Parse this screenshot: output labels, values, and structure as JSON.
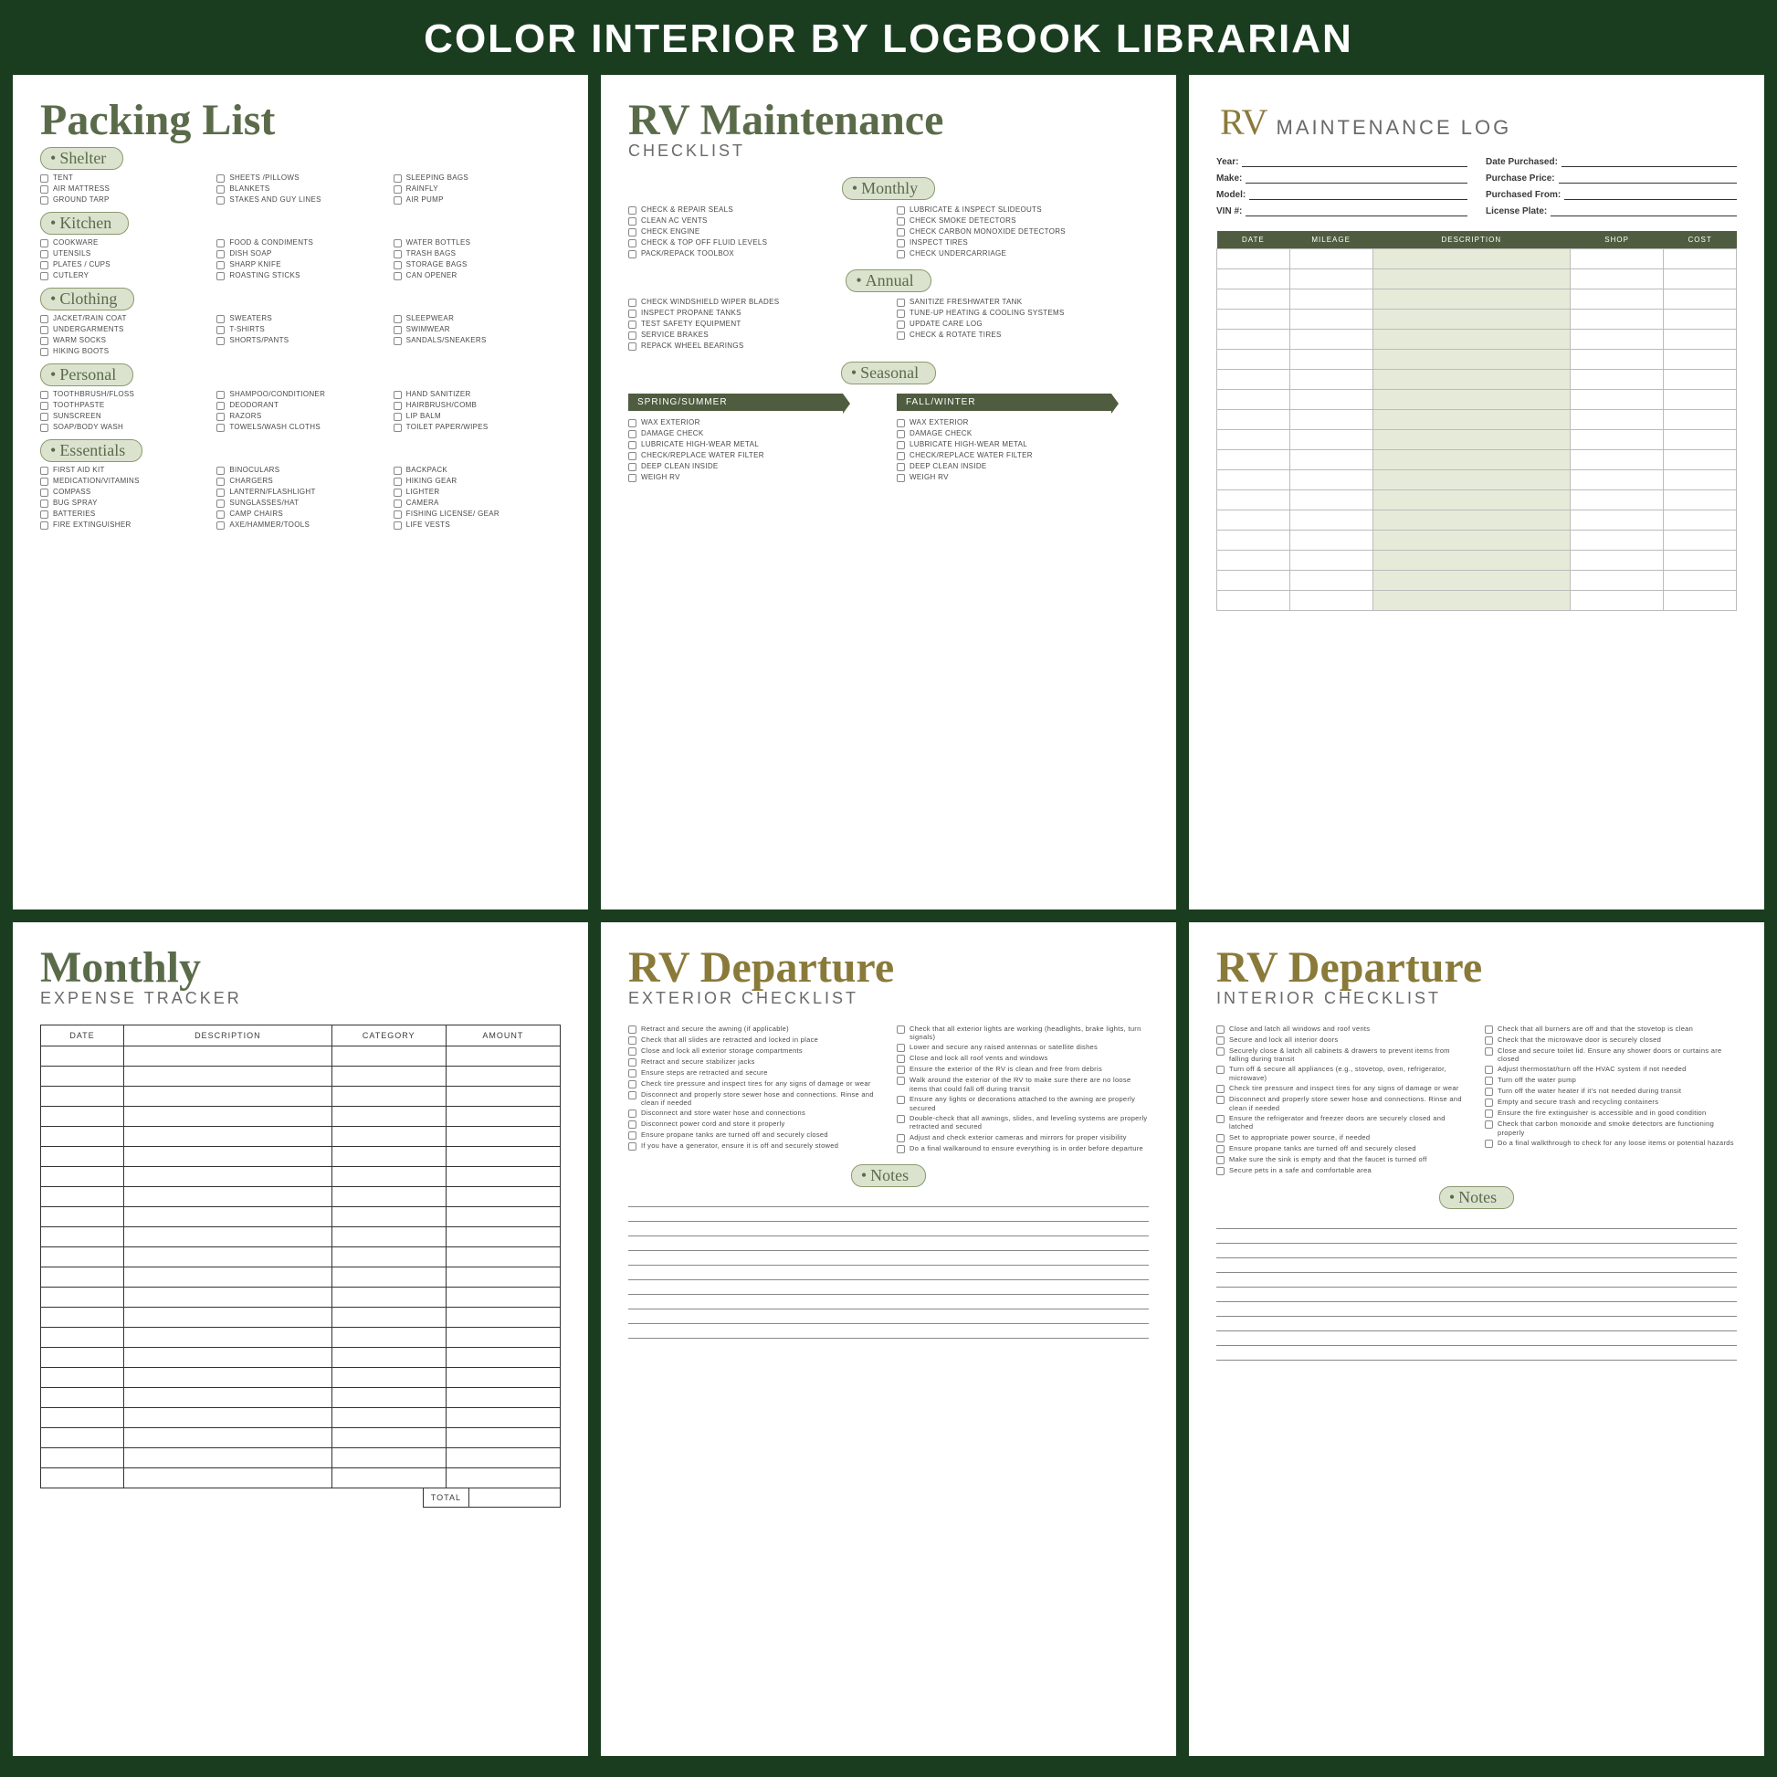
{
  "banner": "COLOR INTERIOR BY LOGBOOK LIBRARIAN",
  "colors": {
    "bg": "#1a3d1f",
    "olive": "#5a6b4a",
    "pill": "#dbe3cf",
    "flag": "#4f5c3f",
    "accent": "#8a7a3a",
    "shade": "#e6ebd9"
  },
  "packing": {
    "title": "Packing List",
    "sections": [
      {
        "label": "Shelter",
        "cols": [
          [
            "TENT",
            "AIR MATTRESS",
            "GROUND TARP"
          ],
          [
            "SHEETS /PILLOWS",
            "BLANKETS",
            "STAKES AND GUY LINES"
          ],
          [
            "SLEEPING BAGS",
            "RAINFLY",
            "AIR PUMP"
          ]
        ]
      },
      {
        "label": "Kitchen",
        "cols": [
          [
            "COOKWARE",
            "UTENSILS",
            "PLATES / CUPS",
            "CUTLERY"
          ],
          [
            "FOOD & CONDIMENTS",
            "DISH SOAP",
            "SHARP KNIFE",
            "ROASTING STICKS"
          ],
          [
            "WATER BOTTLES",
            "TRASH BAGS",
            "STORAGE BAGS",
            "CAN OPENER"
          ]
        ]
      },
      {
        "label": "Clothing",
        "cols": [
          [
            "JACKET/RAIN COAT",
            "UNDERGARMENTS",
            "WARM SOCKS",
            "HIKING BOOTS"
          ],
          [
            "SWEATERS",
            "T-SHIRTS",
            "SHORTS/PANTS"
          ],
          [
            "SLEEPWEAR",
            "SWIMWEAR",
            "SANDALS/SNEAKERS"
          ]
        ]
      },
      {
        "label": "Personal",
        "cols": [
          [
            "TOOTHBRUSH/FLOSS",
            "TOOTHPASTE",
            "SUNSCREEN",
            "SOAP/BODY WASH"
          ],
          [
            "SHAMPOO/CONDITIONER",
            "DEODORANT",
            "RAZORS",
            "TOWELS/WASH CLOTHS"
          ],
          [
            "HAND SANITIZER",
            "HAIRBRUSH/COMB",
            "LIP BALM",
            "TOILET PAPER/WIPES"
          ]
        ]
      },
      {
        "label": "Essentials",
        "cols": [
          [
            "FIRST AID KIT",
            "MEDICATION/VITAMINS",
            "COMPASS",
            "BUG SPRAY",
            "BATTERIES",
            "FIRE EXTINGUISHER"
          ],
          [
            "BINOCULARS",
            "CHARGERS",
            "LANTERN/FLASHLIGHT",
            "SUNGLASSES/HAT",
            "CAMP CHAIRS",
            "AXE/HAMMER/TOOLS"
          ],
          [
            "BACKPACK",
            "HIKING GEAR",
            "LIGHTER",
            "CAMERA",
            "FISHING LICENSE/ GEAR",
            "LIFE VESTS"
          ]
        ]
      }
    ]
  },
  "maintenance": {
    "title_script": "RV Maintenance",
    "title_sub": "CHECKLIST",
    "monthly_label": "Monthly",
    "monthly": {
      "left": [
        "CHECK & REPAIR SEALS",
        "CLEAN AC VENTS",
        "CHECK ENGINE",
        "CHECK & TOP OFF FLUID LEVELS",
        "PACK/REPACK TOOLBOX"
      ],
      "right": [
        "LUBRICATE & INSPECT SLIDEOUTS",
        "CHECK SMOKE DETECTORS",
        "CHECK CARBON MONOXIDE DETECTORS",
        "INSPECT TIRES",
        "CHECK UNDERCARRIAGE"
      ]
    },
    "annual_label": "Annual",
    "annual": {
      "left": [
        "CHECK WINDSHIELD WIPER BLADES",
        "INSPECT PROPANE TANKS",
        "TEST SAFETY EQUIPMENT",
        "SERVICE BRAKES",
        "REPACK WHEEL BEARINGS"
      ],
      "right": [
        "SANITIZE FRESHWATER TANK",
        "TUNE-UP HEATING & COOLING SYSTEMS",
        "UPDATE CARE LOG",
        "CHECK & ROTATE TIRES"
      ]
    },
    "seasonal_label": "Seasonal",
    "spring_flag": "SPRING/SUMMER",
    "fall_flag": "FALL/WINTER",
    "spring": [
      "WAX EXTERIOR",
      "DAMAGE CHECK",
      "LUBRICATE HIGH-WEAR METAL",
      "CHECK/REPLACE WATER FILTER",
      "DEEP CLEAN INSIDE",
      "WEIGH RV"
    ],
    "fall": [
      "WAX EXTERIOR",
      "DAMAGE CHECK",
      "LUBRICATE HIGH-WEAR METAL",
      "CHECK/REPLACE WATER FILTER",
      "DEEP CLEAN INSIDE",
      "WEIGH RV"
    ]
  },
  "log": {
    "title_rv": "RV",
    "title_rest": "MAINTENANCE LOG",
    "fields_left": [
      "Year:",
      "Make:",
      "Model:",
      "VIN #:"
    ],
    "fields_right": [
      "Date Purchased:",
      "Purchase Price:",
      "Purchased From:",
      "License Plate:"
    ],
    "columns": [
      "DATE",
      "MILEAGE",
      "DESCRIPTION",
      "SHOP",
      "COST"
    ],
    "col_widths": [
      "14%",
      "16%",
      "38%",
      "18%",
      "14%"
    ],
    "shaded_col_index": 2,
    "rows": 18
  },
  "expense": {
    "title_script": "Monthly",
    "title_sub": "EXPENSE TRACKER",
    "columns": [
      "DATE",
      "DESCRIPTION",
      "CATEGORY",
      "AMOUNT"
    ],
    "col_widths": [
      "16%",
      "40%",
      "22%",
      "22%"
    ],
    "rows": 22,
    "total_label": "TOTAL"
  },
  "dep_ext": {
    "title_script": "RV Departure",
    "title_sub": "EXTERIOR CHECKLIST",
    "left": [
      "Retract and secure the awning (if applicable)",
      "Check that all slides are retracted and locked in place",
      "Close and lock all exterior storage compartments",
      "Retract and secure stabilizer jacks",
      "Ensure steps are retracted and secure",
      "Check tire pressure and inspect tires for any signs of damage or wear",
      "Disconnect and properly store sewer hose and connections. Rinse and clean if needed",
      "Disconnect and store water hose and connections",
      "Disconnect power cord and store it properly",
      "Ensure propane tanks are turned off and securely closed",
      "If you have a generator, ensure it is off and securely stowed"
    ],
    "right": [
      "Check that all exterior lights are working (headlights, brake lights, turn signals)",
      "Lower and secure any raised antennas or satellite dishes",
      "Close and lock all roof vents and windows",
      "Ensure the exterior of the RV is clean and free from debris",
      "Walk around the exterior of the RV to make sure there are no loose items that could fall off during transit",
      "Ensure any lights or decorations attached to the awning are properly secured",
      "Double-check that all awnings, slides, and leveling systems are properly retracted and secured",
      "Adjust and check exterior cameras and mirrors for proper visibility",
      "Do a final walkaround to ensure everything is in order before departure"
    ],
    "notes_label": "Notes",
    "notes_lines": 10
  },
  "dep_int": {
    "title_script": "RV Departure",
    "title_sub": "INTERIOR CHECKLIST",
    "left": [
      "Close and latch all windows and roof vents",
      "Secure and lock all interior doors",
      "Securely close & latch all cabinets & drawers to prevent items from falling during transit",
      "Turn off & secure all appliances (e.g., stovetop, oven, refrigerator, microwave)",
      "Check tire pressure and inspect tires for any signs of damage or wear",
      "Disconnect and properly store sewer hose and connections. Rinse and clean if needed",
      "Ensure the refrigerator and freezer doors are securely closed and latched",
      "Set to appropriate power source, if needed",
      "Ensure propane tanks are turned off and securely closed",
      "Make sure the sink is empty and that the faucet is turned off",
      "Secure pets in a safe and comfortable area"
    ],
    "right": [
      "Check that all burners are off and that the stovetop is clean",
      "Check that the microwave door is securely closed",
      "Close and secure toilet lid. Ensure any shower doors or curtains are closed",
      "Adjust thermostat/turn off the HVAC system if not needed",
      "Turn off the water pump",
      "Turn off the water heater if it's not needed during transit",
      "Empty and secure trash and recycling containers",
      "Ensure the fire extinguisher is accessible and in good condition",
      "Check that carbon monoxide and smoke detectors are functioning properly",
      "Do a final walkthrough to check for any loose items or potential hazards"
    ],
    "notes_label": "Notes",
    "notes_lines": 10
  }
}
